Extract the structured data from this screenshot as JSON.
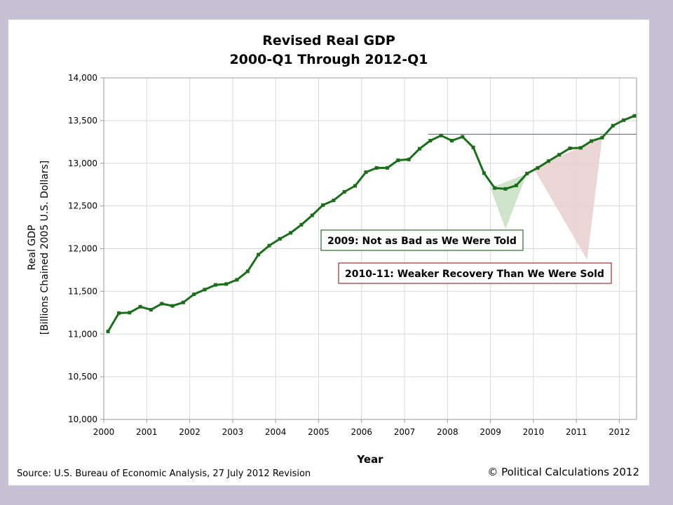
{
  "chart_data": {
    "type": "line",
    "title": "Revised Real GDP",
    "subtitle": "2000-Q1 Through 2012-Q1",
    "xlabel": "Year",
    "ylabel_line1": "Real GDP",
    "ylabel_line2": "[Billions Chained 2005 U.S. Dollars]",
    "xlim": [
      2000,
      2012.4
    ],
    "ylim": [
      10000,
      14000
    ],
    "y_ticks": [
      10000,
      10500,
      11000,
      11500,
      12000,
      12500,
      13000,
      13500,
      14000
    ],
    "y_tick_labels": [
      "10,000",
      "10,500",
      "11,000",
      "11,500",
      "12,000",
      "12,500",
      "13,000",
      "13,500",
      "14,000"
    ],
    "x_ticks": [
      2000,
      2001,
      2002,
      2003,
      2004,
      2005,
      2006,
      2007,
      2008,
      2009,
      2010,
      2011,
      2012
    ],
    "x_tick_labels": [
      "2000",
      "2001",
      "2002",
      "2003",
      "2004",
      "2005",
      "2006",
      "2007",
      "2008",
      "2009",
      "2010",
      "2011",
      "2012"
    ],
    "grid": true,
    "series_color": "#1a6e1a",
    "series": [
      {
        "x": [
          2000.1,
          2000.35,
          2000.6,
          2000.85,
          2001.1,
          2001.35,
          2001.6,
          2001.85,
          2002.1,
          2002.35,
          2002.6,
          2002.85,
          2003.1,
          2003.35,
          2003.6,
          2003.85,
          2004.1,
          2004.35,
          2004.6,
          2004.85,
          2005.1,
          2005.35,
          2005.6,
          2005.85,
          2006.1,
          2006.35,
          2006.6,
          2006.85,
          2007.1,
          2007.35,
          2007.6,
          2007.85,
          2008.1,
          2008.35,
          2008.6,
          2008.85,
          2009.1,
          2009.35,
          2009.6,
          2009.85,
          2010.1,
          2010.35,
          2010.6,
          2010.85,
          2011.1,
          2011.35,
          2011.6,
          2011.85,
          2012.1,
          2012.35
        ],
        "values": [
          11030,
          11245,
          11250,
          11320,
          11285,
          11355,
          11330,
          11370,
          11465,
          11520,
          11575,
          11585,
          11635,
          11735,
          11930,
          12035,
          12115,
          12185,
          12280,
          12390,
          12510,
          12565,
          12665,
          12735,
          12895,
          12945,
          12945,
          13035,
          13045,
          13170,
          13265,
          13325,
          13265,
          13310,
          13185,
          12885,
          12710,
          12700,
          12740,
          12880,
          12945,
          13025,
          13100,
          13175,
          13180,
          13260,
          13300,
          13440,
          13505,
          13555
        ]
      }
    ],
    "reference_line_value": 13340,
    "reference_line_color": "#3a6a8a",
    "annotations": [
      {
        "text": "2009: Not as Bad as We Were Told",
        "border_color": "#2e6b2e",
        "fill_color": "#c8dfc3",
        "wedge_x": [
          2009.0,
          2009.85,
          2009.35
        ],
        "wedge_y": [
          12710,
          12880,
          12230
        ]
      },
      {
        "text": "2010-11: Weaker Recovery Than We Were Sold",
        "border_color": "#a03030",
        "fill_color": "#e8cfcf",
        "wedge_x": [
          2010.0,
          2011.6,
          2011.25
        ],
        "wedge_y": [
          12945,
          13300,
          11870
        ]
      }
    ],
    "source": "Source: U.S. Bureau of Economic Analysis, 27 July 2012 Revision",
    "copyright": "© Political Calculations 2012"
  }
}
